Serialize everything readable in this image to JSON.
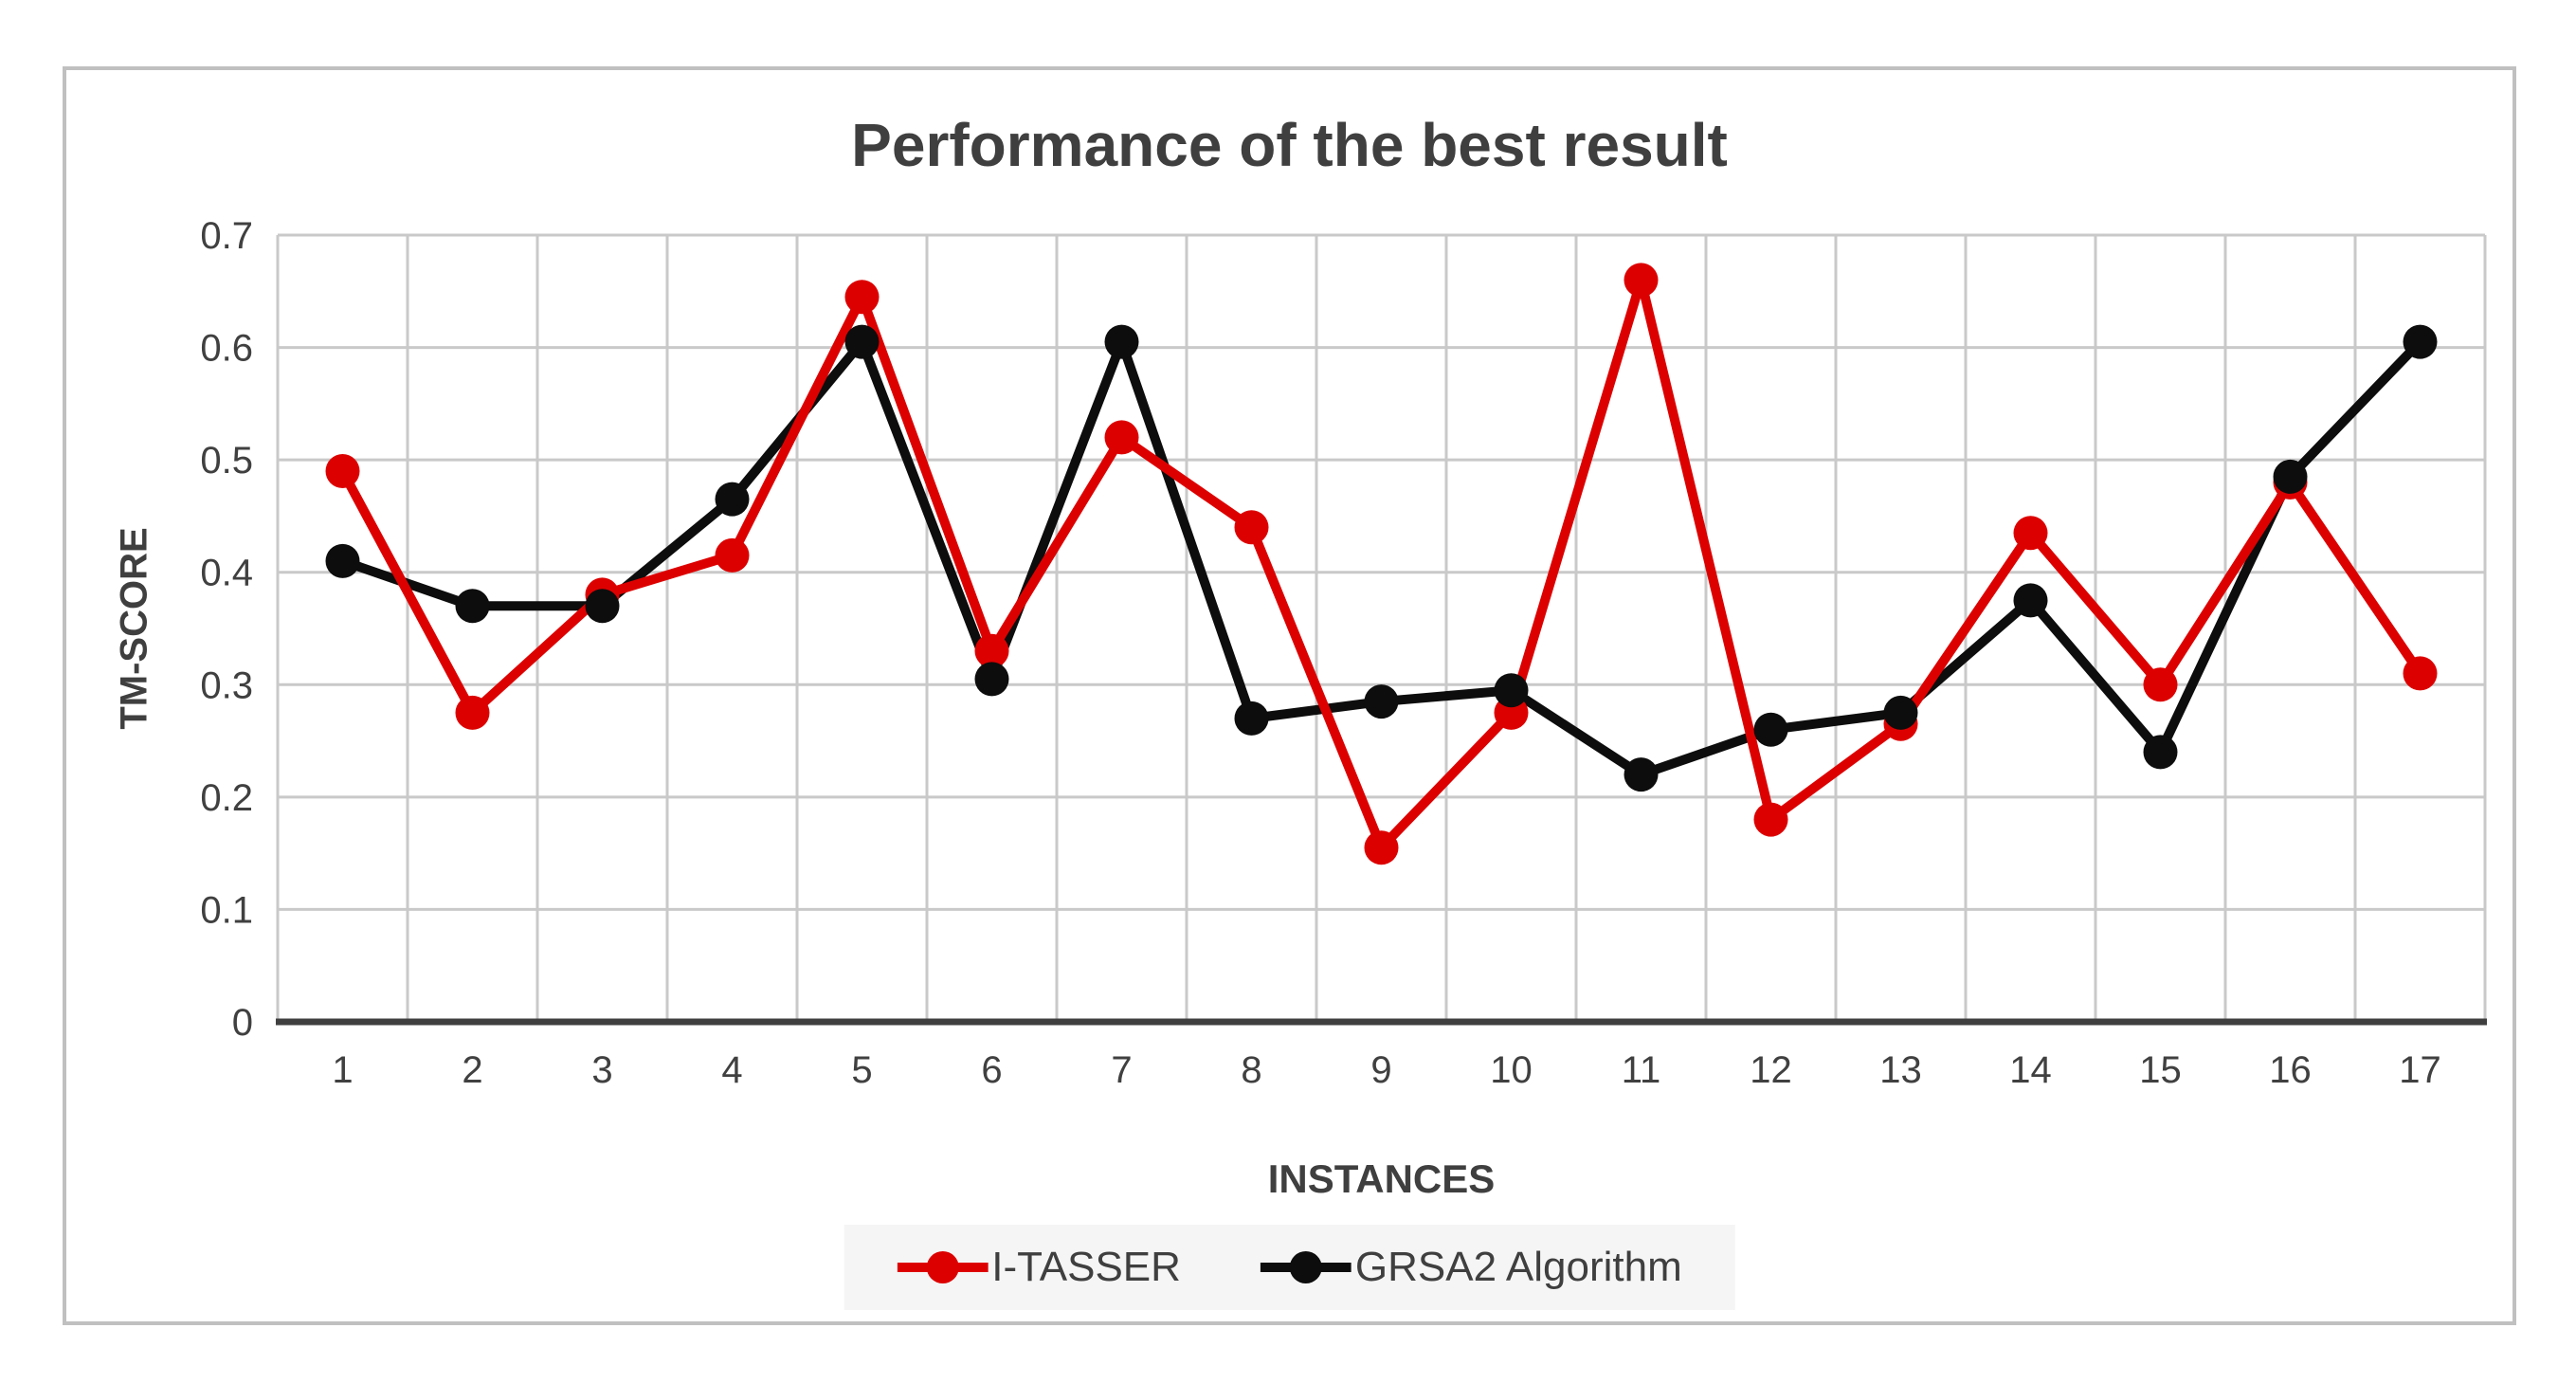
{
  "chart_data": {
    "type": "line",
    "title": "Performance of the best result",
    "xlabel": "INSTANCES",
    "ylabel": "TM-SCORE",
    "categories": [
      "1",
      "2",
      "3",
      "4",
      "5",
      "6",
      "7",
      "8",
      "9",
      "10",
      "11",
      "12",
      "13",
      "14",
      "15",
      "16",
      "17"
    ],
    "series": [
      {
        "name": "I-TASSER",
        "color": "#dd0000",
        "values": [
          0.49,
          0.275,
          0.38,
          0.415,
          0.645,
          0.33,
          0.52,
          0.44,
          0.155,
          0.275,
          0.66,
          0.18,
          0.265,
          0.435,
          0.3,
          0.48,
          0.31
        ]
      },
      {
        "name": "GRSA2 Algorithm",
        "color": "#0d0d0d",
        "values": [
          0.41,
          0.37,
          0.37,
          0.465,
          0.605,
          0.305,
          0.605,
          0.27,
          0.285,
          0.295,
          0.22,
          0.26,
          0.275,
          0.375,
          0.24,
          0.485,
          0.605
        ]
      }
    ],
    "ylim": [
      0,
      0.7
    ],
    "yticks": [
      0,
      0.1,
      0.2,
      0.3,
      0.4,
      0.5,
      0.6,
      0.7
    ],
    "ytick_labels": [
      "0",
      "0.1",
      "0.2",
      "0.3",
      "0.4",
      "0.5",
      "0.6",
      "0.7"
    ],
    "grid": true,
    "gridline_color": "#c9c9c9",
    "axis_color": "#3f3f3f",
    "legend_position": "bottom"
  }
}
